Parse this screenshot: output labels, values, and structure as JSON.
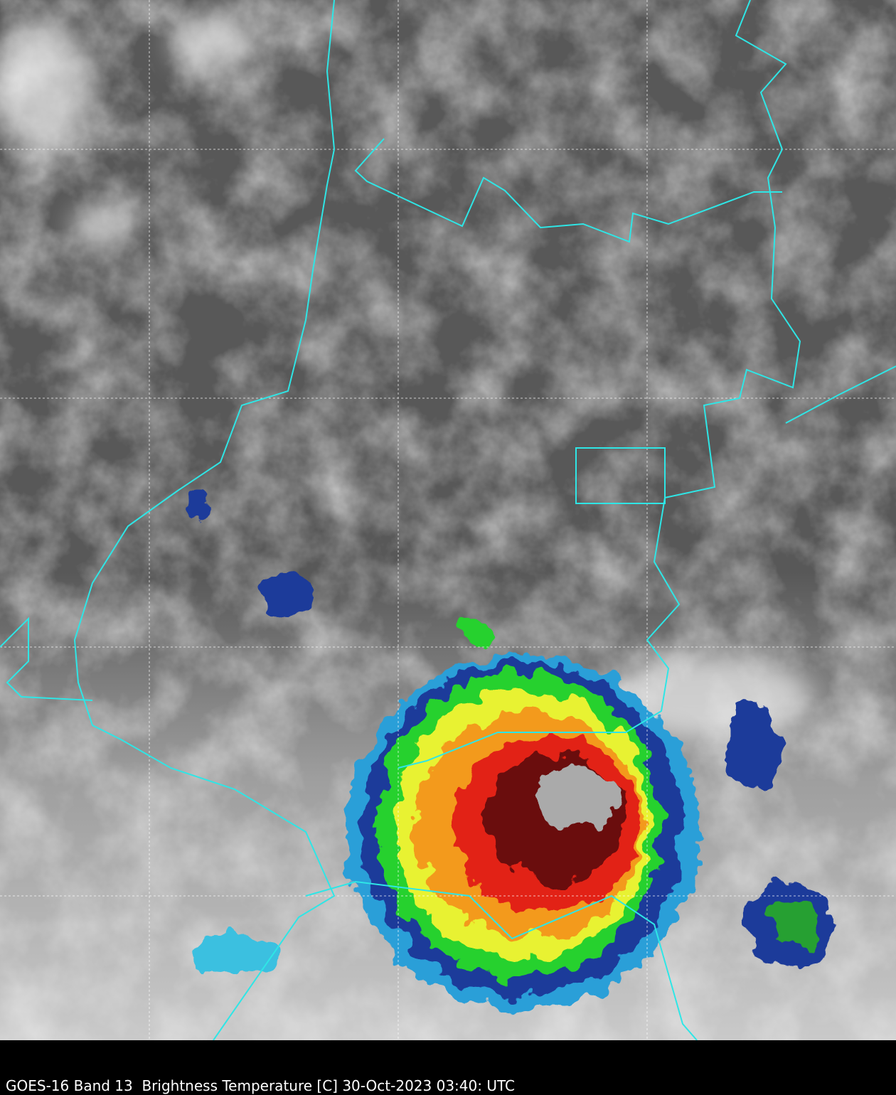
{
  "caption": "GOES-16 Band 13  Brightness Temperature [C] 30-Oct-2023 03:40: UTC"
}
